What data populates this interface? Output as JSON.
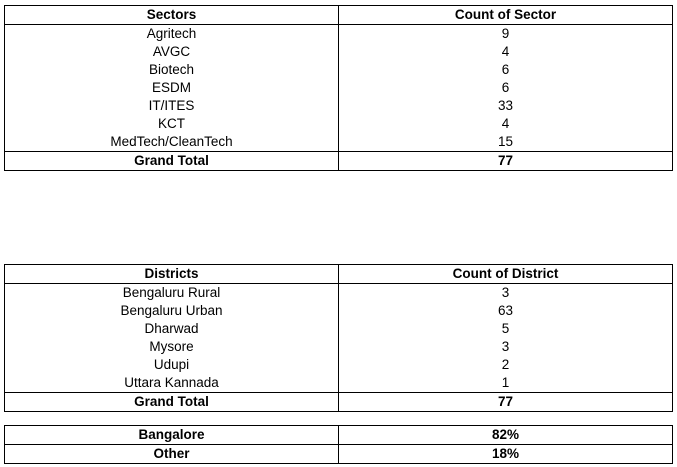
{
  "sectors_table": {
    "headers": [
      "Sectors",
      "Count of Sector"
    ],
    "rows": [
      [
        "Agritech",
        "9"
      ],
      [
        "AVGC",
        "4"
      ],
      [
        "Biotech",
        "6"
      ],
      [
        "ESDM",
        "6"
      ],
      [
        "IT/ITES",
        "33"
      ],
      [
        "KCT",
        "4"
      ],
      [
        "MedTech/CleanTech",
        "15"
      ]
    ],
    "total": [
      "Grand Total",
      "77"
    ]
  },
  "districts_table": {
    "headers": [
      "Districts",
      "Count of District"
    ],
    "rows": [
      [
        "Bengaluru Rural",
        "3"
      ],
      [
        "Bengaluru Urban",
        "63"
      ],
      [
        "Dharwad",
        "5"
      ],
      [
        "Mysore",
        "3"
      ],
      [
        "Udupi",
        "2"
      ],
      [
        "Uttara Kannada",
        "1"
      ]
    ],
    "total": [
      "Grand Total",
      "77"
    ]
  },
  "location_split_table": {
    "rows": [
      [
        "Bangalore",
        "82%"
      ],
      [
        "Other",
        "18%"
      ]
    ]
  }
}
